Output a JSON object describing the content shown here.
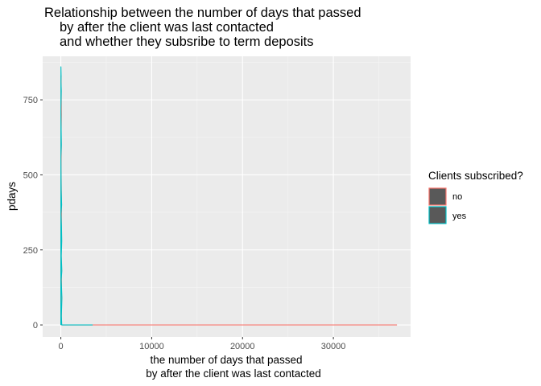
{
  "chart_data": {
    "type": "line",
    "title_lines": [
      "Relationship between the number of days that passed",
      "by after the client was last contacted",
      "and whether they subsribe to term deposits"
    ],
    "xlabel_lines": [
      "the number of days that passed",
      "by after the client was last contacted"
    ],
    "ylabel": "pdays",
    "xlim": [
      -2000,
      38500
    ],
    "ylim": [
      -40,
      895
    ],
    "x_ticks": [
      0,
      10000,
      20000,
      30000
    ],
    "x_tick_labels": [
      "0",
      "10000",
      "20000",
      "30000"
    ],
    "y_ticks": [
      0,
      250,
      500,
      750
    ],
    "y_tick_labels": [
      "0",
      "250",
      "500",
      "750"
    ],
    "grid": true,
    "legend": {
      "title": "Clients subscribed?",
      "position": "right",
      "entries": [
        {
          "label": "no",
          "color": "#F8766D"
        },
        {
          "label": "yes",
          "color": "#00BFC4"
        }
      ]
    },
    "series": [
      {
        "name": "no",
        "color": "#F8766D",
        "points": [
          [
            37000,
            0
          ],
          [
            3000,
            0
          ],
          [
            500,
            0
          ],
          [
            100,
            0
          ],
          [
            50,
            2
          ],
          [
            80,
            120
          ],
          [
            30,
            250
          ],
          [
            70,
            380
          ],
          [
            40,
            480
          ],
          [
            20,
            520
          ],
          [
            50,
            590
          ],
          [
            30,
            640
          ],
          [
            60,
            700
          ],
          [
            40,
            780
          ],
          [
            20,
            830
          ],
          [
            10,
            0
          ]
        ]
      },
      {
        "name": "yes",
        "color": "#00BFC4",
        "points": [
          [
            3500,
            0
          ],
          [
            1000,
            0
          ],
          [
            300,
            0
          ],
          [
            100,
            0
          ],
          [
            60,
            30
          ],
          [
            120,
            90
          ],
          [
            40,
            150
          ],
          [
            110,
            180
          ],
          [
            50,
            230
          ],
          [
            100,
            280
          ],
          [
            70,
            330
          ],
          [
            20,
            370
          ],
          [
            90,
            400
          ],
          [
            40,
            450
          ],
          [
            30,
            480
          ],
          [
            10,
            560
          ],
          [
            60,
            600
          ],
          [
            30,
            660
          ],
          [
            10,
            720
          ],
          [
            50,
            780
          ],
          [
            20,
            810
          ],
          [
            30,
            830
          ],
          [
            10,
            860
          ],
          [
            0,
            0
          ]
        ]
      }
    ]
  },
  "theme": {
    "panel_bg": "#EBEBEB",
    "grid_major": "#FFFFFF",
    "legend_key_fill": "#595959"
  }
}
